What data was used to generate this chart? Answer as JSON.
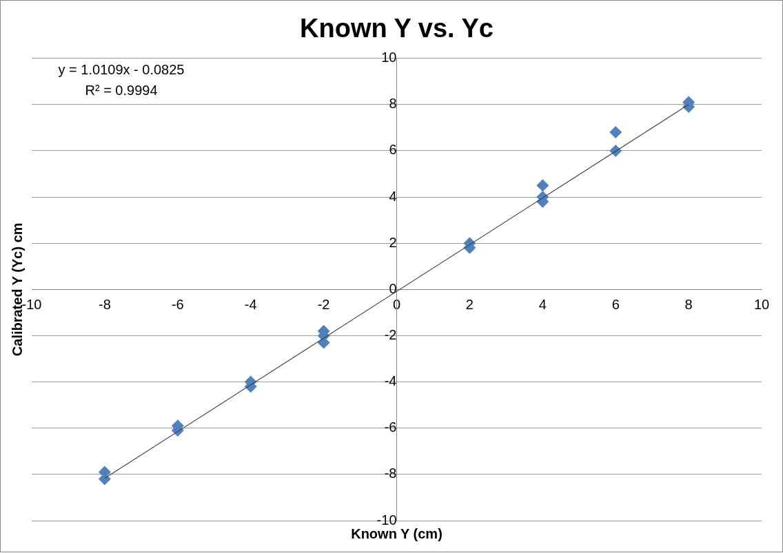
{
  "chart_data": {
    "type": "scatter",
    "title": "Known Y vs. Yc",
    "xlabel": "Known Y (cm)",
    "ylabel": "Calibrated Y (Yc) cm",
    "x": [
      -8,
      -8,
      -6,
      -6,
      -4,
      -4,
      -2,
      -2,
      -2,
      2,
      2,
      4,
      4,
      4,
      6,
      6,
      8,
      8
    ],
    "series": [
      {
        "color": "#4f81bd",
        "values": [
          -7.9,
          -8.2,
          -5.9,
          -6.1,
          -4.0,
          -4.2,
          -1.8,
          -2.0,
          -2.3,
          1.8,
          2.0,
          3.8,
          4.0,
          4.5,
          6.0,
          6.8,
          8.1,
          7.9
        ]
      },
      {
        "type": "line",
        "color": "#404040",
        "x": [
          -8,
          8
        ],
        "values": [
          -8.17,
          8.0
        ],
        "marker": "none"
      }
    ],
    "xlim": [
      -10,
      10
    ],
    "ylim": [
      -10,
      10
    ],
    "xticks": [
      -10,
      -8,
      -6,
      -4,
      -2,
      0,
      2,
      4,
      6,
      8,
      10
    ],
    "yticks": [
      -10,
      -8,
      -6,
      -4,
      -2,
      0,
      2,
      4,
      6,
      8,
      10
    ],
    "grid": "y",
    "legend": false,
    "marker": "diamond",
    "annotations": [
      "y = 1.0109x - 0.0825",
      "R² = 0.9994"
    ]
  }
}
